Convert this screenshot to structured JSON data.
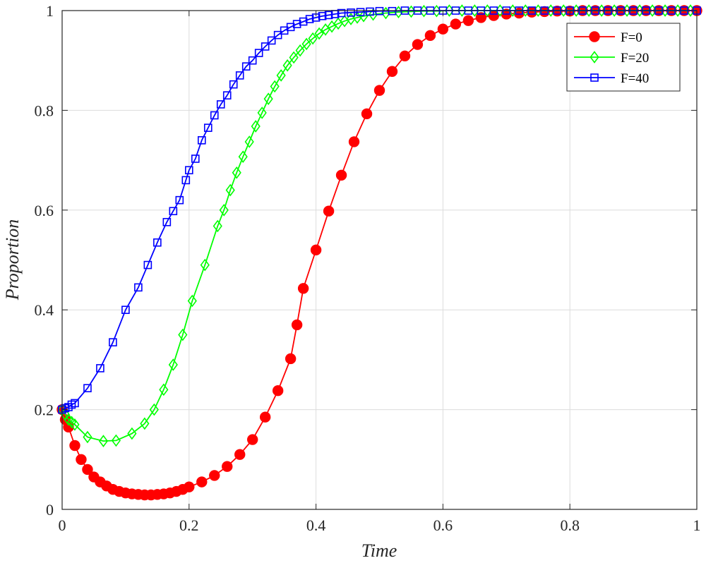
{
  "chart_data": {
    "type": "line",
    "xlabel": "Time",
    "ylabel": "Proportion",
    "xlim": [
      0,
      1
    ],
    "ylim": [
      0,
      1
    ],
    "x_ticks": [
      "0",
      "0.2",
      "0.4",
      "0.6",
      "0.8",
      "1"
    ],
    "y_ticks": [
      "0",
      "0.2",
      "0.4",
      "0.6",
      "0.8",
      "1"
    ],
    "grid": true,
    "legend_position": "top-right",
    "series": [
      {
        "name": "F=0",
        "color": "#ff0000",
        "marker": "circle",
        "x": [
          0,
          0.005,
          0.01,
          0.02,
          0.03,
          0.04,
          0.05,
          0.06,
          0.07,
          0.08,
          0.09,
          0.1,
          0.11,
          0.12,
          0.13,
          0.14,
          0.15,
          0.16,
          0.17,
          0.18,
          0.19,
          0.2,
          0.22,
          0.24,
          0.26,
          0.28,
          0.3,
          0.32,
          0.34,
          0.36,
          0.37,
          0.38,
          0.4,
          0.42,
          0.44,
          0.46,
          0.48,
          0.5,
          0.52,
          0.54,
          0.56,
          0.58,
          0.6,
          0.62,
          0.64,
          0.66,
          0.68,
          0.7,
          0.72,
          0.74,
          0.76,
          0.78,
          0.8,
          0.82,
          0.84,
          0.86,
          0.88,
          0.9,
          0.92,
          0.94,
          0.96,
          0.98,
          1.0
        ],
        "y": [
          0.2,
          0.18,
          0.165,
          0.128,
          0.1,
          0.08,
          0.065,
          0.055,
          0.047,
          0.04,
          0.036,
          0.033,
          0.031,
          0.03,
          0.029,
          0.029,
          0.03,
          0.031,
          0.033,
          0.036,
          0.04,
          0.045,
          0.055,
          0.068,
          0.086,
          0.11,
          0.14,
          0.185,
          0.238,
          0.302,
          0.37,
          0.443,
          0.52,
          0.598,
          0.67,
          0.737,
          0.793,
          0.84,
          0.878,
          0.909,
          0.932,
          0.95,
          0.963,
          0.973,
          0.98,
          0.986,
          0.99,
          0.993,
          0.995,
          0.997,
          0.998,
          0.999,
          0.999,
          1,
          1,
          1,
          1,
          1,
          1,
          1,
          1,
          1,
          1
        ]
      },
      {
        "name": "F=20",
        "color": "#00ff00",
        "marker": "diamond",
        "x": [
          0,
          0.005,
          0.01,
          0.015,
          0.02,
          0.04,
          0.065,
          0.085,
          0.11,
          0.13,
          0.145,
          0.16,
          0.175,
          0.19,
          0.205,
          0.225,
          0.245,
          0.255,
          0.265,
          0.275,
          0.285,
          0.295,
          0.305,
          0.315,
          0.325,
          0.335,
          0.345,
          0.355,
          0.365,
          0.375,
          0.385,
          0.395,
          0.405,
          0.415,
          0.425,
          0.435,
          0.445,
          0.455,
          0.465,
          0.475,
          0.49,
          0.51,
          0.53,
          0.55,
          0.57,
          0.59,
          0.61,
          0.63,
          0.65,
          0.67,
          0.69,
          0.71,
          0.73,
          0.75,
          0.77,
          0.79,
          0.81,
          0.83,
          0.85,
          0.87,
          0.89,
          0.91,
          0.93,
          0.95,
          0.97,
          0.99
        ],
        "y": [
          0.2,
          0.19,
          0.18,
          0.175,
          0.17,
          0.145,
          0.137,
          0.138,
          0.152,
          0.172,
          0.2,
          0.24,
          0.29,
          0.35,
          0.418,
          0.49,
          0.568,
          0.6,
          0.64,
          0.675,
          0.707,
          0.737,
          0.768,
          0.795,
          0.823,
          0.848,
          0.87,
          0.89,
          0.906,
          0.92,
          0.933,
          0.944,
          0.954,
          0.962,
          0.968,
          0.974,
          0.979,
          0.983,
          0.986,
          0.989,
          0.992,
          0.995,
          0.997,
          0.998,
          0.999,
          0.999,
          1,
          1,
          1,
          1,
          1,
          1,
          1,
          1,
          1,
          1,
          1,
          1,
          1,
          1,
          1,
          1,
          1,
          1,
          1,
          1
        ]
      },
      {
        "name": "F=40",
        "color": "#0000ff",
        "marker": "square",
        "x": [
          0,
          0.005,
          0.01,
          0.015,
          0.02,
          0.04,
          0.06,
          0.08,
          0.1,
          0.12,
          0.135,
          0.15,
          0.165,
          0.175,
          0.185,
          0.195,
          0.2,
          0.21,
          0.22,
          0.23,
          0.24,
          0.25,
          0.26,
          0.27,
          0.28,
          0.29,
          0.3,
          0.31,
          0.32,
          0.33,
          0.34,
          0.35,
          0.36,
          0.37,
          0.38,
          0.39,
          0.4,
          0.41,
          0.42,
          0.43,
          0.44,
          0.455,
          0.47,
          0.485,
          0.5,
          0.52,
          0.54,
          0.56,
          0.58,
          0.6,
          0.62,
          0.64,
          0.66,
          0.68,
          0.7,
          0.72,
          0.74,
          0.76,
          0.78,
          0.8,
          0.82,
          0.84,
          0.86,
          0.88,
          0.9,
          0.92,
          0.94,
          0.96,
          0.98,
          1.0
        ],
        "y": [
          0.2,
          0.203,
          0.205,
          0.21,
          0.213,
          0.243,
          0.283,
          0.335,
          0.4,
          0.445,
          0.49,
          0.535,
          0.576,
          0.598,
          0.62,
          0.66,
          0.68,
          0.703,
          0.74,
          0.765,
          0.79,
          0.812,
          0.83,
          0.852,
          0.87,
          0.888,
          0.9,
          0.915,
          0.928,
          0.94,
          0.951,
          0.96,
          0.967,
          0.973,
          0.978,
          0.983,
          0.986,
          0.989,
          0.991,
          0.993,
          0.995,
          0.996,
          0.997,
          0.998,
          0.999,
          0.999,
          1,
          1,
          1,
          1,
          1,
          1,
          1,
          1,
          1,
          1,
          1,
          1,
          1,
          1,
          1,
          1,
          1,
          1,
          1,
          1,
          1,
          1,
          1,
          1
        ]
      }
    ]
  }
}
